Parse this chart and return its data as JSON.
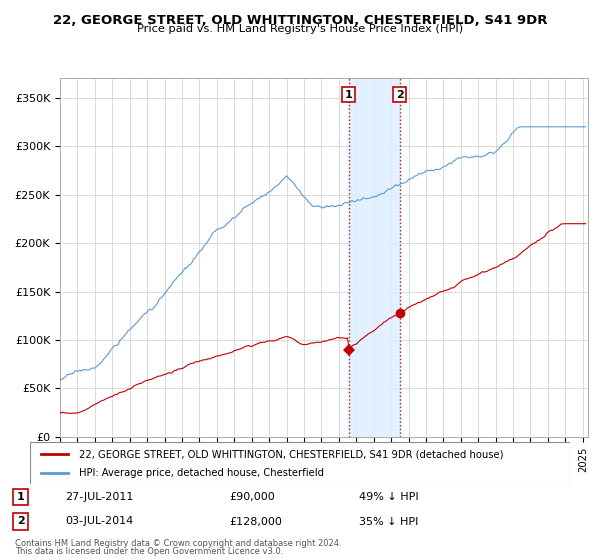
{
  "title": "22, GEORGE STREET, OLD WHITTINGTON, CHESTERFIELD, S41 9DR",
  "subtitle": "Price paid vs. HM Land Registry's House Price Index (HPI)",
  "ylim": [
    0,
    370000
  ],
  "yticks": [
    0,
    50000,
    100000,
    150000,
    200000,
    250000,
    300000,
    350000
  ],
  "ytick_labels": [
    "£0",
    "£50K",
    "£100K",
    "£150K",
    "£200K",
    "£250K",
    "£300K",
    "£350K"
  ],
  "transaction1": {
    "date_x": 2011.57,
    "price": 90000,
    "label": "1",
    "date_str": "27-JUL-2011",
    "price_str": "£90,000",
    "pct": "49% ↓ HPI"
  },
  "transaction2": {
    "date_x": 2014.5,
    "price": 128000,
    "label": "2",
    "date_str": "03-JUL-2014",
    "price_str": "£128,000",
    "pct": "35% ↓ HPI"
  },
  "hpi_color": "#5b9bd5",
  "price_color": "#c00000",
  "shade_color": "#ddeeff",
  "legend_label_price": "22, GEORGE STREET, OLD WHITTINGTON, CHESTERFIELD, S41 9DR (detached house)",
  "legend_label_hpi": "HPI: Average price, detached house, Chesterfield",
  "footer1": "Contains HM Land Registry data © Crown copyright and database right 2024.",
  "footer2": "This data is licensed under the Open Government Licence v3.0.",
  "background_color": "#ffffff",
  "grid_color": "#cccccc",
  "xlim_start": 1995,
  "xlim_end": 2025.3
}
